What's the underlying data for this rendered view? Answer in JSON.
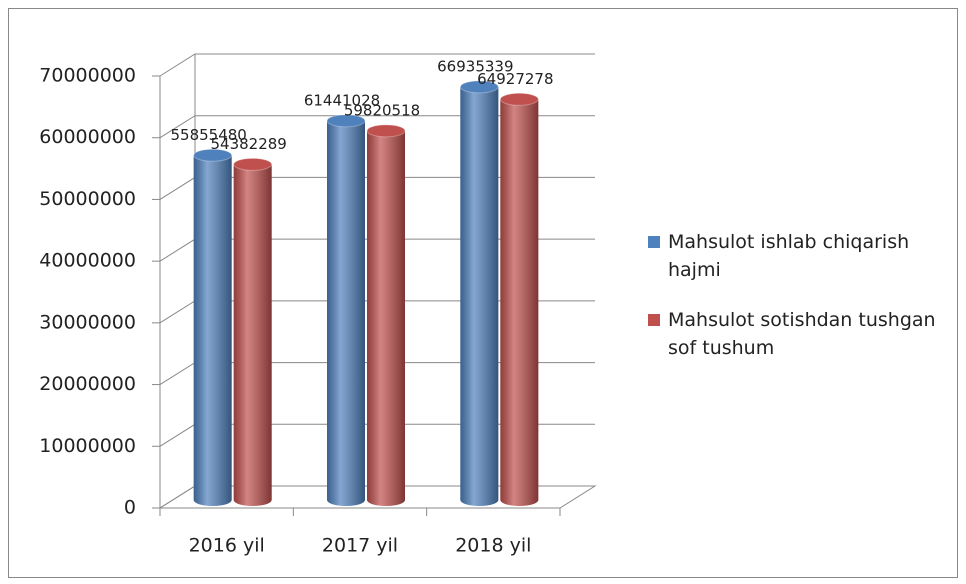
{
  "chart_data": {
    "type": "bar3d",
    "categories": [
      "2016 yil",
      "2017 yil",
      "2018 yil"
    ],
    "series": [
      {
        "name": "Mahsulot ishlab chiqarish hajmi",
        "color": "#4f81bd",
        "values": [
          55855480,
          61441028,
          66935339
        ]
      },
      {
        "name": "Mahsulot sotishdan tushgan sof tushum",
        "color": "#c0504d",
        "values": [
          54382289,
          59820518,
          64927278
        ]
      }
    ],
    "ylim": [
      0,
      70000000
    ],
    "yticks": [
      0,
      10000000,
      20000000,
      30000000,
      40000000,
      50000000,
      60000000,
      70000000
    ],
    "grid": true,
    "legend": "right"
  }
}
